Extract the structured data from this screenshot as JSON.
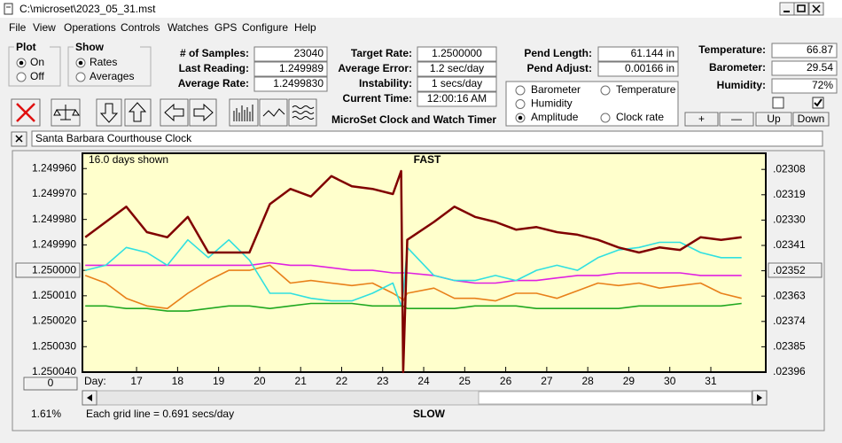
{
  "window": {
    "title": "C:\\microset\\2023_05_31.mst"
  },
  "menu": [
    "File",
    "View",
    "Operations",
    "Controls",
    "Watches",
    "GPS",
    "Configure",
    "Help"
  ],
  "plot_group": {
    "title": "Plot",
    "options": [
      "On",
      "Off"
    ],
    "selected": 0
  },
  "show_group": {
    "title": "Show",
    "options": [
      "Rates",
      "Averages"
    ],
    "selected": 0
  },
  "readings": [
    {
      "label": "# of Samples:",
      "value": "23040"
    },
    {
      "label": "Last Reading:",
      "value": "1.249989"
    },
    {
      "label": "Average Rate:",
      "value": "1.2499830"
    }
  ],
  "timing": [
    {
      "label": "Target Rate:",
      "value": "1.2500000"
    },
    {
      "label": "Average Error:",
      "value": "1.2 sec/day"
    },
    {
      "label": "Instability:",
      "value": "1 secs/day"
    },
    {
      "label": "Current Time:",
      "value": "12:00:16 AM"
    }
  ],
  "pendulum": [
    {
      "label": "Pend Length:",
      "value": "61.144 in"
    },
    {
      "label": "Pend Adjust:",
      "value": "0.00166 in"
    }
  ],
  "environment": [
    {
      "label": "Temperature:",
      "value": "66.87"
    },
    {
      "label": "Barometer:",
      "value": "29.54"
    },
    {
      "label": "Humidity:",
      "value": "72%"
    }
  ],
  "checkboxes": [
    false,
    true
  ],
  "env_buttons": [
    "+",
    "—",
    "Up",
    "Down"
  ],
  "subtitle": "MicroSet Clock and Watch Timer",
  "clock_name": "Santa Barbara Courthouse Clock",
  "offset_button": "0",
  "status": {
    "percent": "1.61%",
    "grid_note": "Each grid line = 0.691 secs/day"
  },
  "chart_data": {
    "type": "line",
    "days_shown": "16.0 days shown",
    "top_label": "FAST",
    "bottom_label": "SLOW",
    "x_label": "Day:",
    "selected_series": 2,
    "x": [
      15.75,
      16.25,
      16.75,
      17.25,
      17.75,
      18.25,
      18.75,
      19.25,
      19.75,
      20.25,
      20.75,
      21.25,
      21.75,
      22.25,
      22.75,
      23.25,
      23.45,
      23.5,
      23.6,
      24.25,
      24.75,
      25.25,
      25.75,
      26.25,
      26.75,
      27.25,
      27.75,
      28.25,
      28.75,
      29.25,
      29.75,
      30.25,
      30.75,
      31.25,
      31.75
    ],
    "xlim": [
      15.68,
      32.34
    ],
    "xticks": [
      17,
      18,
      19,
      20,
      21,
      22,
      23,
      24,
      25,
      26,
      27,
      28,
      29,
      30,
      31
    ],
    "ylim": [
      1.25004,
      1.249954
    ],
    "yticks": [
      {
        "value": 1.24996,
        "label": "1.249960"
      },
      {
        "value": 1.24997,
        "label": "1.249970"
      },
      {
        "value": 1.24998,
        "label": "1.249980"
      },
      {
        "value": 1.24999,
        "label": "1.249990"
      },
      {
        "value": 1.25,
        "label": "1.250000"
      },
      {
        "value": 1.25001,
        "label": "1.250010"
      },
      {
        "value": 1.25002,
        "label": "1.250020"
      },
      {
        "value": 1.25003,
        "label": "1.250030"
      },
      {
        "value": 1.25004,
        "label": "1.250040"
      }
    ],
    "y2lim": [
      0.02396,
      0.02301
    ],
    "y2ticks": [
      {
        "value": 0.02308,
        "label": ".02308"
      },
      {
        "value": 0.02319,
        "label": ".02319"
      },
      {
        "value": 0.0233,
        "label": ".02330"
      },
      {
        "value": 0.02341,
        "label": ".02341"
      },
      {
        "value": 0.02352,
        "label": ".02352"
      },
      {
        "value": 0.02363,
        "label": ".02363"
      },
      {
        "value": 0.02374,
        "label": ".02374"
      },
      {
        "value": 0.02385,
        "label": ".02385"
      },
      {
        "value": 0.02396,
        "label": ".02396"
      }
    ],
    "series": [
      {
        "name": "Barometer",
        "color": "#e8801a",
        "values": [
          1.250002,
          1.250005,
          1.250011,
          1.250014,
          1.250015,
          1.250009,
          1.250004,
          1.25,
          1.25,
          1.249998,
          1.250005,
          1.250004,
          1.250005,
          1.250006,
          1.250005,
          1.250009,
          1.250011,
          1.250012,
          1.250009,
          1.250007,
          1.250011,
          1.250011,
          1.250012,
          1.250009,
          1.250009,
          1.250011,
          1.250008,
          1.250005,
          1.250006,
          1.250005,
          1.250007,
          1.250006,
          1.250005,
          1.250009,
          1.250011
        ]
      },
      {
        "name": "Humidity",
        "color": "#e020e0",
        "values": [
          1.249998,
          1.249998,
          1.249998,
          1.249998,
          1.249998,
          1.249998,
          1.249998,
          1.249998,
          1.249998,
          1.249997,
          1.249998,
          1.249998,
          1.249999,
          1.25,
          1.25,
          1.250001,
          1.250001,
          1.250001,
          1.250001,
          1.250002,
          1.250004,
          1.250005,
          1.250005,
          1.250004,
          1.250004,
          1.250003,
          1.250002,
          1.250002,
          1.250001,
          1.250001,
          1.250001,
          1.250001,
          1.250002,
          1.250002,
          1.250002
        ]
      },
      {
        "name": "Amplitude",
        "color": "#30e0e0",
        "values": [
          1.25,
          1.249998,
          1.249991,
          1.249993,
          1.249998,
          1.249988,
          1.249995,
          1.249988,
          1.249996,
          1.250009,
          1.250009,
          1.250011,
          1.250012,
          1.250012,
          1.250009,
          1.250005,
          1.250014,
          1.250009,
          1.249991,
          1.250002,
          1.250004,
          1.250004,
          1.250002,
          1.250004,
          1.25,
          1.249998,
          1.25,
          1.249995,
          1.249992,
          1.249991,
          1.249989,
          1.249989,
          1.249993,
          1.249995,
          1.249995
        ]
      },
      {
        "name": "Temperature",
        "color": "#20a820",
        "values": [
          1.250014,
          1.250014,
          1.250015,
          1.250015,
          1.250016,
          1.250016,
          1.250015,
          1.250014,
          1.250014,
          1.250015,
          1.250014,
          1.250013,
          1.250013,
          1.250013,
          1.250014,
          1.250014,
          1.250014,
          1.250014,
          1.250015,
          1.250015,
          1.250015,
          1.250014,
          1.250014,
          1.250014,
          1.250015,
          1.250015,
          1.250015,
          1.250015,
          1.250015,
          1.250014,
          1.250014,
          1.250014,
          1.250014,
          1.250014,
          1.250013
        ]
      },
      {
        "name": "Clock rate",
        "color": "#800000",
        "values": [
          1.249987,
          1.249981,
          1.249975,
          1.249985,
          1.249987,
          1.249979,
          1.249993,
          1.249993,
          1.249993,
          1.249974,
          1.249968,
          1.249971,
          1.249963,
          1.249967,
          1.249968,
          1.24997,
          1.249961,
          1.25004,
          1.249988,
          1.249981,
          1.249975,
          1.249979,
          1.249981,
          1.249984,
          1.249983,
          1.249985,
          1.249986,
          1.249988,
          1.249991,
          1.249993,
          1.249991,
          1.249992,
          1.249987,
          1.249988,
          1.249987
        ]
      }
    ]
  }
}
